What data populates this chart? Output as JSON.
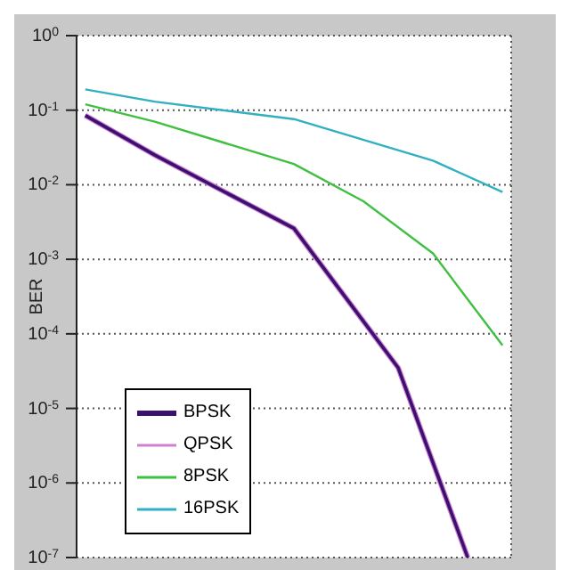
{
  "chart_data": {
    "type": "line",
    "ylabel": "BER",
    "categories": [
      null,
      null,
      null,
      null,
      null,
      null,
      null,
      null,
      null,
      null,
      null,
      null,
      null,
      null,
      null,
      null,
      null,
      null,
      null,
      null,
      null,
      null,
      null,
      null,
      null
    ],
    "series": [
      {
        "name": "BPSK",
        "color": "#3a1070",
        "values": [
          0.085,
          null,
          null,
          null,
          0.025,
          null,
          null,
          null,
          null,
          null,
          null,
          null,
          0.0026,
          null,
          null,
          null,
          null,
          null,
          3.5e-05,
          null,
          null,
          null,
          1e-07,
          null,
          null
        ]
      },
      {
        "name": "QPSK",
        "color": "#d080d0",
        "values": [
          0.085,
          null,
          null,
          null,
          0.025,
          null,
          null,
          null,
          null,
          null,
          null,
          null,
          0.0026,
          null,
          null,
          null,
          null,
          null,
          3.5e-05,
          null,
          null,
          null,
          1e-07,
          null,
          null
        ]
      },
      {
        "name": "8PSK",
        "color": "#40c040",
        "values": [
          0.12,
          null,
          null,
          null,
          0.07,
          null,
          null,
          null,
          null,
          null,
          null,
          null,
          0.019,
          null,
          null,
          null,
          0.006,
          null,
          null,
          null,
          0.0012,
          null,
          null,
          null,
          7e-05
        ]
      },
      {
        "name": "16PSK",
        "color": "#30b0c0",
        "values": [
          0.19,
          null,
          null,
          null,
          0.13,
          null,
          null,
          null,
          null,
          null,
          null,
          null,
          0.076,
          null,
          null,
          null,
          null,
          null,
          null,
          null,
          0.021,
          null,
          null,
          null,
          0.008
        ]
      }
    ],
    "log": true,
    "ylim": [
      1e-07,
      1
    ],
    "yticks": [
      {
        "value": 1,
        "label": "10$^{0}$"
      },
      {
        "value": 0.1,
        "label": "10$^{-1}$"
      },
      {
        "value": 0.01,
        "label": "10$^{-2}$"
      },
      {
        "value": 0.001,
        "label": "10$^{-3}$"
      },
      {
        "value": 0.0001,
        "label": "10$^{-4}$"
      },
      {
        "value": 1e-05,
        "label": "10$^{-5}$"
      },
      {
        "value": 1e-06,
        "label": "10$^{-6}$"
      },
      {
        "value": 1e-07,
        "label": "10$^{-7}$"
      }
    ],
    "grid": true,
    "legend": "bottom left",
    "marker": "none",
    "line_style": "solid",
    "tick_labels": "y"
  }
}
